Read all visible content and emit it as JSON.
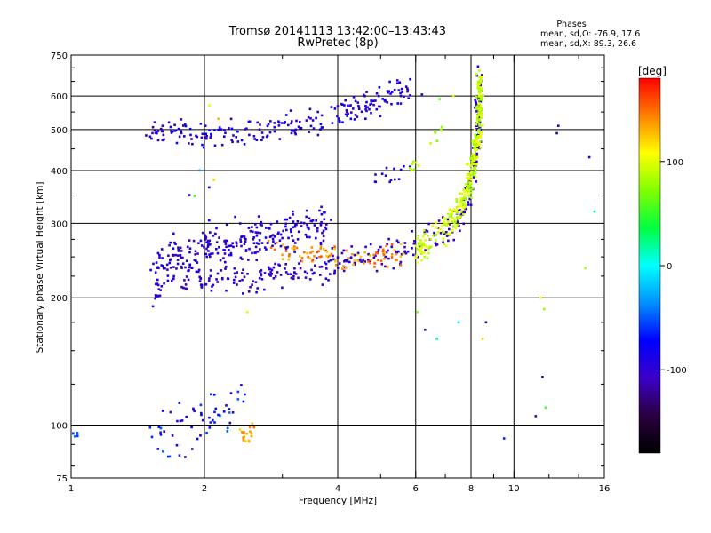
{
  "chart_data": {
    "type": "scatter",
    "title": "Tromsø 20141113 13:42:00–13:43:43",
    "subtitle": "RwPretec (8p)",
    "xlabel": "Frequency [MHz]",
    "ylabel": "Stationary phase Virtual Height [km]",
    "x_scale": "log",
    "y_scale": "log",
    "xlim": [
      1,
      16
    ],
    "ylim": [
      75,
      750
    ],
    "x_ticks": [
      1,
      2,
      4,
      6,
      8,
      10,
      16
    ],
    "y_ticks": [
      75,
      100,
      200,
      300,
      400,
      500,
      600,
      750
    ],
    "grid": true,
    "stats": {
      "heading": "Phases",
      "line_o": "mean, sd,O: -76.9, 17.6",
      "line_x": "mean, sd,X:  89.3, 26.6"
    },
    "colorbar": {
      "label": "[deg]",
      "range": [
        -180,
        180
      ],
      "ticks": [
        {
          "value": 100,
          "label": "100"
        },
        {
          "value": 0,
          "label": "0"
        },
        {
          "value": -100,
          "label": "-100"
        }
      ]
    },
    "traces": [
      {
        "kind": "curve",
        "points": [
          [
            1.55,
            200
          ],
          [
            1.6,
            220
          ],
          [
            1.8,
            222
          ],
          [
            2.2,
            222
          ],
          [
            2.8,
            226
          ],
          [
            3.5,
            234
          ],
          [
            4.2,
            244
          ],
          [
            5.0,
            254
          ],
          [
            5.8,
            262
          ],
          [
            6.4,
            272
          ],
          [
            6.9,
            285
          ],
          [
            7.4,
            305
          ],
          [
            7.8,
            340
          ],
          [
            8.1,
            400
          ],
          [
            8.3,
            480
          ],
          [
            8.35,
            560
          ],
          [
            8.3,
            650
          ]
        ],
        "phase": [
          -115,
          -90
        ],
        "jitter": 0.05,
        "count": 380
      },
      {
        "kind": "curve",
        "points": [
          [
            6.0,
            262
          ],
          [
            6.5,
            274
          ],
          [
            7.0,
            290
          ],
          [
            7.4,
            312
          ],
          [
            7.8,
            350
          ],
          [
            8.1,
            410
          ],
          [
            8.3,
            500
          ],
          [
            8.4,
            580
          ],
          [
            8.35,
            650
          ]
        ],
        "phase": [
          75,
          110
        ],
        "jitter": 0.05,
        "count": 340
      },
      {
        "kind": "curve",
        "points": [
          [
            2.8,
            262
          ],
          [
            3.2,
            256
          ],
          [
            3.8,
            250
          ],
          [
            4.3,
            248
          ],
          [
            5.0,
            252
          ],
          [
            5.6,
            256
          ]
        ],
        "phase": [
          120,
          160
        ],
        "jitter": 0.04,
        "count": 90
      },
      {
        "kind": "band",
        "points": [
          [
            1.55,
            240
          ],
          [
            1.8,
            256
          ],
          [
            2.2,
            268
          ],
          [
            2.8,
            280
          ],
          [
            3.5,
            296
          ],
          [
            3.8,
            300
          ]
        ],
        "phase": [
          -120,
          -80
        ],
        "spread": 0.07,
        "count": 260
      },
      {
        "kind": "band",
        "points": [
          [
            1.5,
            490
          ],
          [
            1.9,
            488
          ],
          [
            2.4,
            492
          ],
          [
            3.0,
            502
          ],
          [
            3.6,
            520
          ],
          [
            4.2,
            555
          ],
          [
            5.0,
            590
          ],
          [
            5.8,
            628
          ]
        ],
        "phase": [
          -120,
          -70
        ],
        "spread": 0.045,
        "count": 230
      },
      {
        "kind": "curve",
        "points": [
          [
            4.5,
            380
          ],
          [
            5.0,
            388
          ],
          [
            5.5,
            395
          ],
          [
            5.8,
            400
          ]
        ],
        "phase": [
          -110,
          -90
        ],
        "jitter": 0.03,
        "count": 14
      },
      {
        "kind": "curve",
        "points": [
          [
            5.8,
            405
          ],
          [
            6.2,
            440
          ],
          [
            6.5,
            470
          ],
          [
            7.0,
            520
          ]
        ],
        "phase": [
          70,
          100
        ],
        "jitter": 0.03,
        "count": 14
      },
      {
        "kind": "band",
        "points": [
          [
            1.5,
            95
          ],
          [
            1.8,
            100
          ],
          [
            2.1,
            104
          ],
          [
            2.5,
            120
          ]
        ],
        "phase": [
          -110,
          -40
        ],
        "spread": 0.1,
        "count": 60
      },
      {
        "kind": "band",
        "points": [
          [
            2.4,
            94
          ],
          [
            2.6,
            95
          ]
        ],
        "phase": [
          120,
          150
        ],
        "spread": 0.04,
        "count": 18
      },
      {
        "kind": "band",
        "points": [
          [
            1.0,
            95
          ],
          [
            1.05,
            95
          ]
        ],
        "phase": [
          -60,
          -40
        ],
        "spread": 0.01,
        "count": 6
      },
      {
        "kind": "points",
        "points": [
          [
            1.85,
            350
          ],
          [
            1.9,
            348
          ],
          [
            1.95,
            400
          ],
          [
            2.05,
            365
          ],
          [
            2.1,
            380
          ],
          [
            6.05,
            185
          ],
          [
            6.3,
            168
          ],
          [
            6.7,
            160
          ],
          [
            7.5,
            175
          ],
          [
            8.5,
            160
          ],
          [
            8.65,
            175
          ],
          [
            9.5,
            93
          ],
          [
            11.5,
            200
          ],
          [
            11.6,
            130
          ],
          [
            11.7,
            188
          ],
          [
            12.5,
            490
          ],
          [
            12.6,
            510
          ],
          [
            11.2,
            105
          ],
          [
            11.8,
            110
          ],
          [
            14.8,
            430
          ],
          [
            15.2,
            320
          ],
          [
            14.5,
            235
          ],
          [
            2.05,
            570
          ],
          [
            2.15,
            530
          ],
          [
            2.05,
            305
          ],
          [
            2.5,
            185
          ],
          [
            7.3,
            600
          ],
          [
            6.8,
            590
          ],
          [
            6.2,
            605
          ]
        ],
        "phase": [
          -130,
          130
        ],
        "random_phase": true
      }
    ]
  }
}
